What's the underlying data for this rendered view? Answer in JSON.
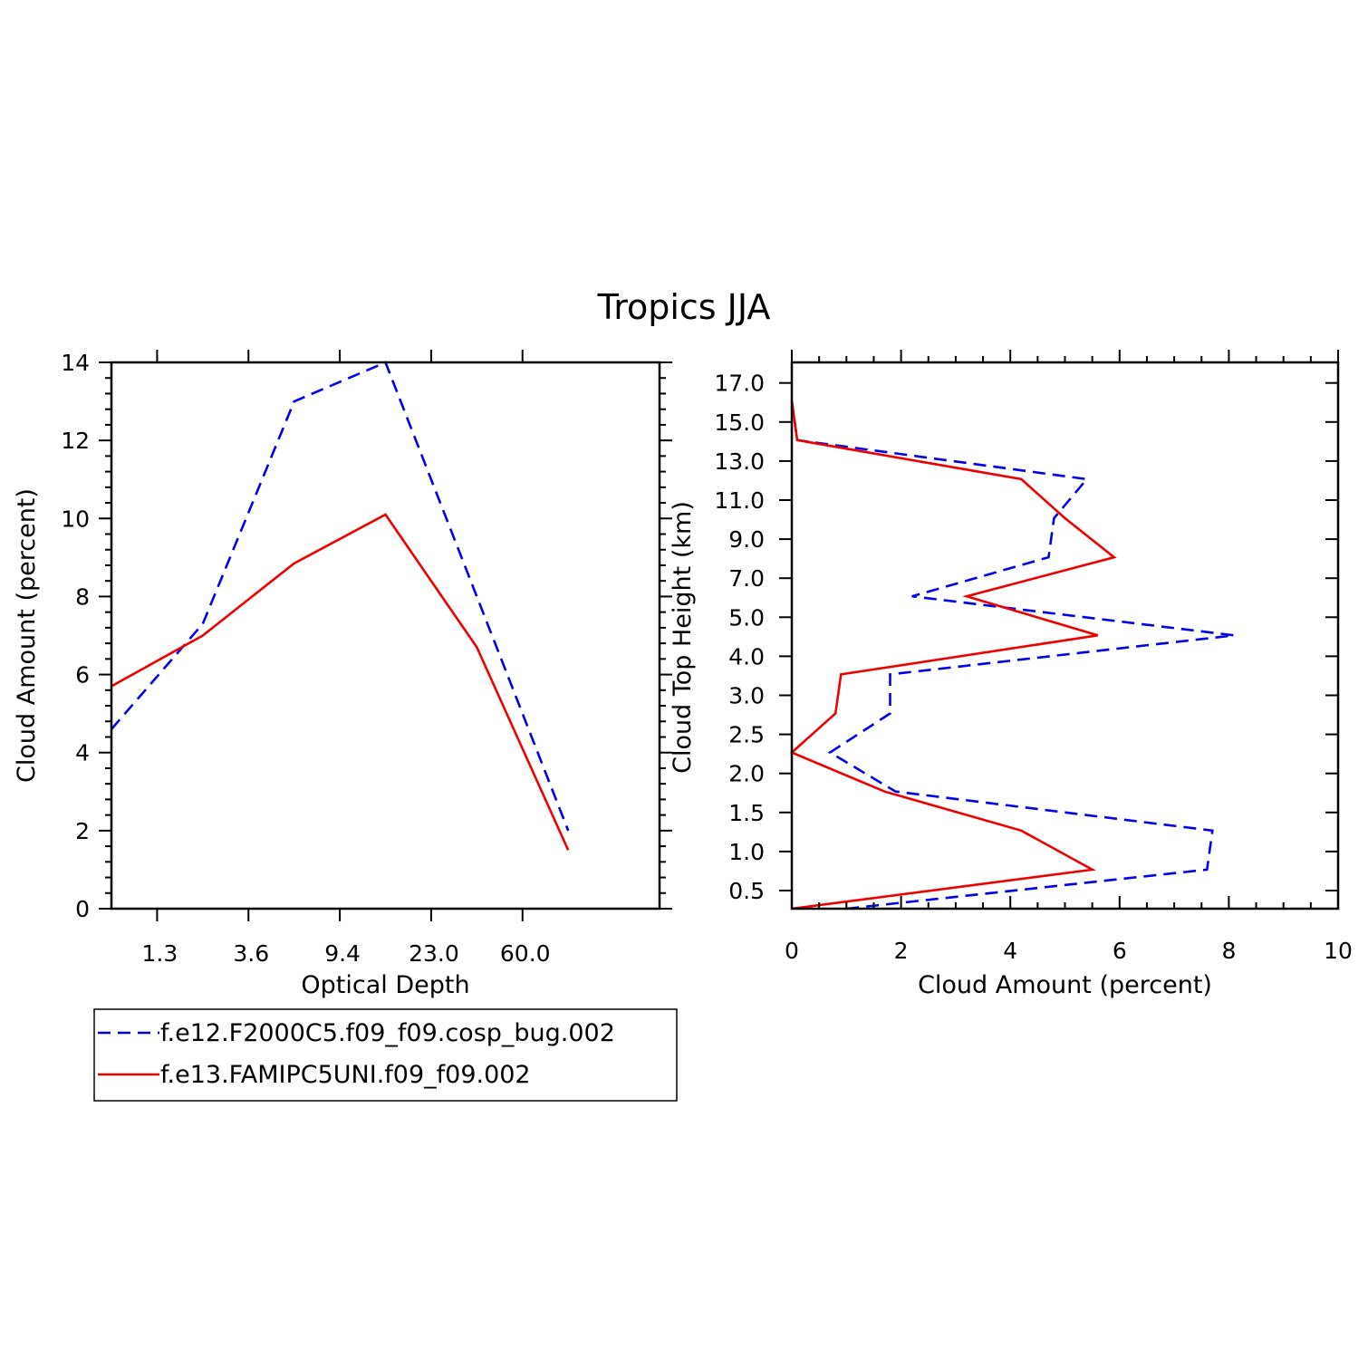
{
  "figure": {
    "title": "Tropics JJA"
  },
  "colors": {
    "series1": "#0000ee",
    "series2": "#ee0000"
  },
  "legend": {
    "entries": [
      {
        "label": "f.e12.F2000C5.f09_f09.cosp_bug.002",
        "style": "dashed",
        "color": "#0000ee"
      },
      {
        "label": "f.e13.FAMIPC5UNI.f09_f09.002",
        "style": "solid",
        "color": "#ee0000"
      }
    ]
  },
  "chart_data": [
    {
      "type": "line",
      "xlabel": "Optical Depth",
      "ylabel": "Cloud Amount (percent)",
      "x_tick_labels": [
        "1.3",
        "3.6",
        "9.4",
        "23.0",
        "60.0"
      ],
      "x_bins": 6,
      "ylim": [
        0,
        14
      ],
      "y_ticks": [
        0,
        2,
        4,
        6,
        8,
        10,
        12,
        14
      ],
      "series": [
        {
          "name": "f.e12.F2000C5.f09_f09.cosp_bug.002",
          "values": [
            4.6,
            7.3,
            13.0,
            14.0,
            8.0,
            2.0
          ]
        },
        {
          "name": "f.e13.FAMIPC5UNI.f09_f09.002",
          "values": [
            5.7,
            7.0,
            8.85,
            10.1,
            6.7,
            1.5
          ]
        }
      ]
    },
    {
      "type": "line",
      "xlabel": "Cloud Amount (percent)",
      "ylabel": "Cloud Top Height (km)",
      "xlim": [
        0,
        10
      ],
      "x_ticks": [
        0,
        2,
        4,
        6,
        8,
        10
      ],
      "y_tick_labels": [
        "0.5",
        "1.0",
        "1.5",
        "2.0",
        "2.5",
        "3.0",
        "4.0",
        "5.0",
        "7.0",
        "9.0",
        "11.0",
        "13.0",
        "15.0",
        "17.0"
      ],
      "y_levels": 14,
      "series": [
        {
          "name": "f.e12.F2000C5.f09_f09.cosp_bug.002",
          "values": [
            1.0,
            7.6,
            7.7,
            1.9,
            0.7,
            1.8,
            1.8,
            8.1,
            2.2,
            4.7,
            4.8,
            5.4,
            0.1,
            0.0
          ]
        },
        {
          "name": "f.e13.FAMIPC5UNI.f09_f09.002",
          "values": [
            0.0,
            5.5,
            4.2,
            1.7,
            0.0,
            0.8,
            0.9,
            5.6,
            3.2,
            5.9,
            5.0,
            4.2,
            0.1,
            0.0
          ]
        }
      ]
    }
  ]
}
